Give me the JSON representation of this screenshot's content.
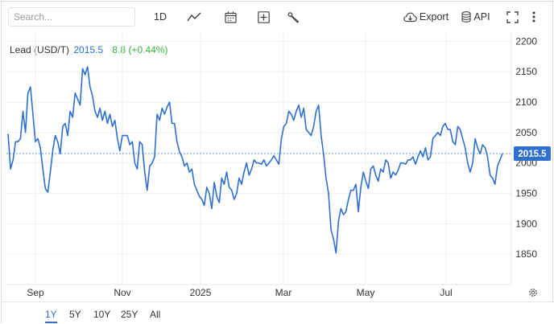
{
  "toolbar": {
    "search_placeholder": "Search...",
    "interval_label": "1D",
    "export_label": "Export",
    "api_label": "API"
  },
  "legend": {
    "name": "Lead (USD/T)",
    "price": "2015.5",
    "change": "8.8 (+0.44%)"
  },
  "price_tag": "2015.5",
  "colors": {
    "line": "#2f6fcf",
    "change_positive": "#3cb043",
    "grid": "#eeeeee"
  },
  "ranges": [
    "1Y",
    "5Y",
    "10Y",
    "25Y",
    "All"
  ],
  "active_range": "1Y",
  "chart_data": {
    "type": "line",
    "title": "",
    "xlabel": "",
    "ylabel": "",
    "x_ticks": [
      "Sep",
      "Nov",
      "2025",
      "Mar",
      "May",
      "Jul"
    ],
    "y_ticks": [
      1850,
      1900,
      1950,
      2000,
      2050,
      2100,
      2150,
      2200
    ],
    "ylim": [
      1800,
      2215
    ],
    "grid": true,
    "current_value": 2015.5,
    "series": [
      {
        "name": "",
        "values": [
          2048,
          1990,
          2005,
          2035,
          2035,
          2040,
          2085,
          2050,
          2115,
          2125,
          2080,
          2035,
          2040,
          2025,
          1990,
          1958,
          1952,
          1985,
          2020,
          2045,
          2035,
          2015,
          2060,
          2065,
          2045,
          2085,
          2075,
          2115,
          2105,
          2095,
          2155,
          2145,
          2158,
          2125,
          2110,
          2085,
          2075,
          2090,
          2070,
          2085,
          2065,
          2080,
          2060,
          2070,
          2040,
          2020,
          2045,
          2045,
          2045,
          2030,
          2035,
          2000,
          1990,
          2035,
          2030,
          1985,
          1955,
          1995,
          2000,
          2010,
          2080,
          2070,
          2090,
          2080,
          2092,
          2100,
          2065,
          2065,
          2035,
          2018,
          2010,
          1995,
          2000,
          1985,
          1990,
          1965,
          1955,
          1945,
          1940,
          1930,
          1960,
          1950,
          1925,
          1968,
          1945,
          1935,
          1975,
          1965,
          1985,
          1960,
          1955,
          1940,
          1950,
          1975,
          1965,
          1985,
          2000,
          1980,
          1990,
          2005,
          2000,
          2000,
          1998,
          2005,
          1995,
          2000,
          2005,
          2012,
          2005,
          1998,
          2040,
          2060,
          2065,
          2085,
          2080,
          2070,
          2085,
          2095,
          2075,
          2090,
          2055,
          2050,
          2045,
          2060,
          2085,
          2095,
          2045,
          2015,
          1975,
          1950,
          1890,
          1875,
          1852,
          1905,
          1925,
          1915,
          1920,
          1940,
          1955,
          1955,
          1965,
          1920,
          1960,
          1985,
          1970,
          1958,
          1990,
          1995,
          1980,
          1970,
          1990,
          1985,
          2005,
          2000,
          1975,
          1985,
          1980,
          1988,
          2000,
          2000,
          1998,
          2005,
          2005,
          2010,
          1998,
          2010,
          2020,
          2010,
          2025,
          2005,
          2010,
          2040,
          2045,
          2050,
          2045,
          2060,
          2065,
          2055,
          2055,
          2035,
          2030,
          2060,
          2055,
          2040,
          2025,
          2000,
          1985,
          2000,
          2040,
          2025,
          2015,
          2030,
          2025,
          2010,
          1980,
          1975,
          1965,
          1995,
          2005,
          2015.5
        ]
      }
    ]
  }
}
